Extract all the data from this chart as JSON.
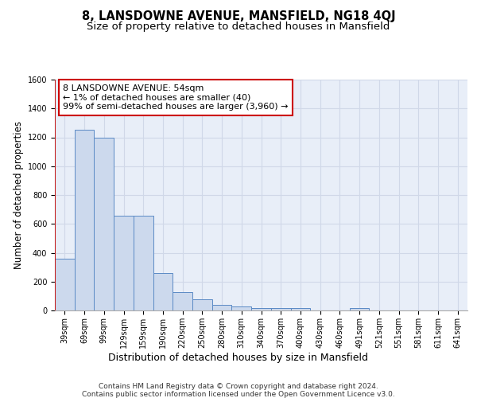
{
  "title": "8, LANSDOWNE AVENUE, MANSFIELD, NG18 4QJ",
  "subtitle": "Size of property relative to detached houses in Mansfield",
  "xlabel": "Distribution of detached houses by size in Mansfield",
  "ylabel": "Number of detached properties",
  "categories": [
    "39sqm",
    "69sqm",
    "99sqm",
    "129sqm",
    "159sqm",
    "190sqm",
    "220sqm",
    "250sqm",
    "280sqm",
    "310sqm",
    "340sqm",
    "370sqm",
    "400sqm",
    "430sqm",
    "460sqm",
    "491sqm",
    "521sqm",
    "551sqm",
    "581sqm",
    "611sqm",
    "641sqm"
  ],
  "values": [
    360,
    1250,
    1200,
    655,
    655,
    260,
    125,
    75,
    40,
    25,
    15,
    15,
    15,
    0,
    0,
    15,
    0,
    0,
    0,
    0,
    0
  ],
  "bar_color": "#ccd9ed",
  "bar_edge_color": "#5b8ac5",
  "bg_color": "#e8eef8",
  "grid_color": "#d0d8e8",
  "red_line_color": "#cc0000",
  "annotation_text": "8 LANSDOWNE AVENUE: 54sqm\n← 1% of detached houses are smaller (40)\n99% of semi-detached houses are larger (3,960) →",
  "annotation_box_color": "#ffffff",
  "annotation_border_color": "#cc0000",
  "footer_text": "Contains HM Land Registry data © Crown copyright and database right 2024.\nContains public sector information licensed under the Open Government Licence v3.0.",
  "ylim": [
    0,
    1600
  ],
  "title_fontsize": 10.5,
  "subtitle_fontsize": 9.5,
  "ylabel_fontsize": 8.5,
  "xlabel_fontsize": 9,
  "tick_fontsize": 7,
  "annot_fontsize": 8,
  "footer_fontsize": 6.5
}
